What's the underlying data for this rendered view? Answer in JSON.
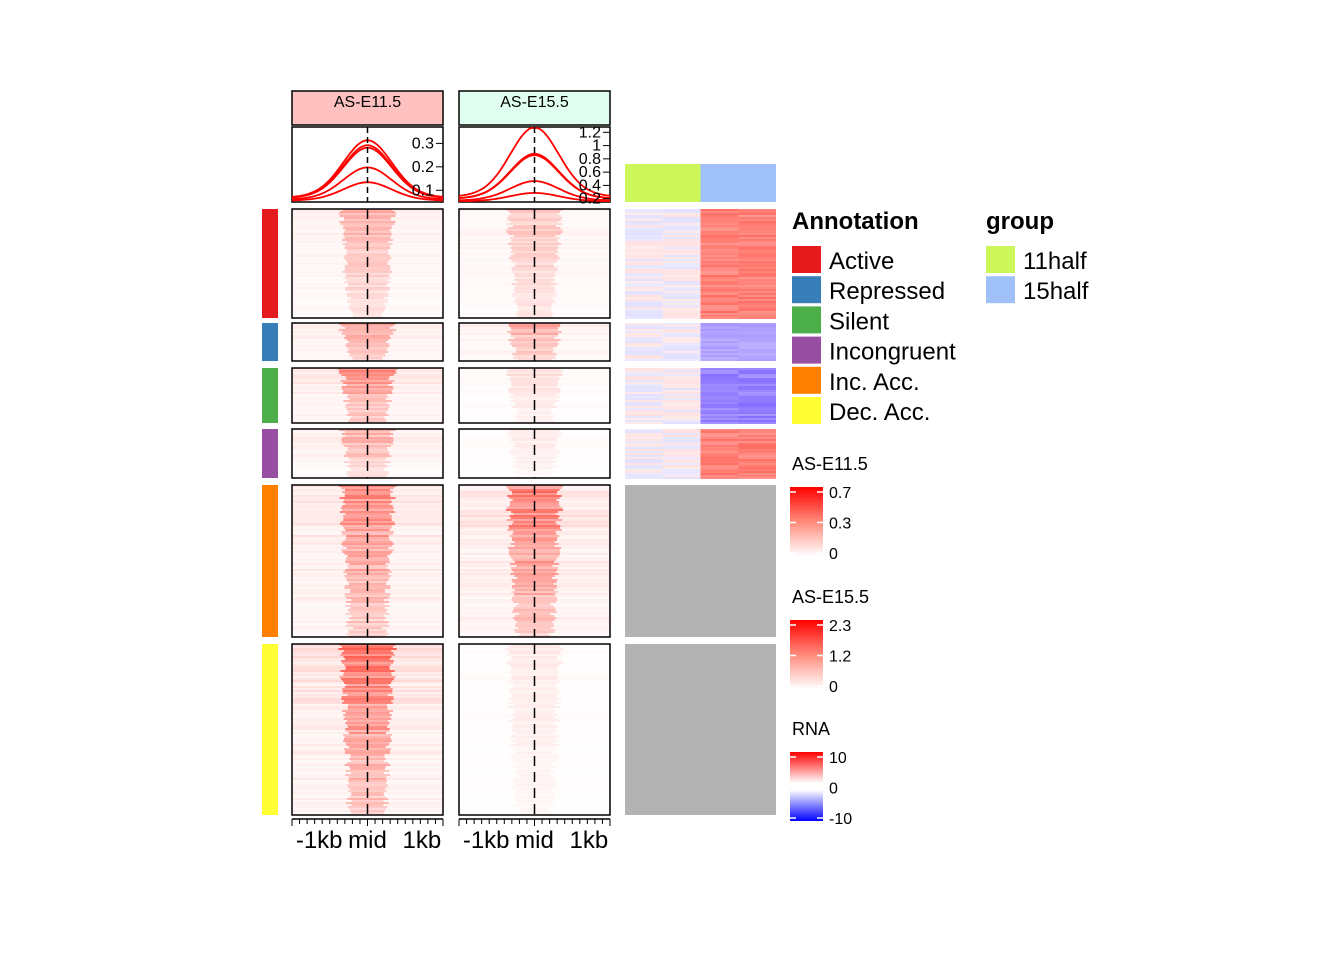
{
  "chart_data": {
    "type": "heatmap",
    "title": "",
    "panels": [
      {
        "name": "AS-E11.5",
        "header_color": "#FFC0C0",
        "profile_yticks": [
          0.1,
          0.2,
          0.3
        ],
        "profile_ylim": [
          0.05,
          0.37
        ],
        "profile_peaks": [
          0.3,
          0.28,
          0.27,
          0.19,
          0.13
        ],
        "cluster_intensity": [
          0.45,
          0.6,
          0.7,
          0.5,
          0.75,
          0.9
        ]
      },
      {
        "name": "AS-E15.5",
        "header_color": "#E0FFF0",
        "profile_yticks": [
          0.2,
          0.4,
          0.6,
          0.8,
          1,
          1.2
        ],
        "profile_ylim": [
          0.15,
          1.28
        ],
        "profile_peaks": [
          1.22,
          0.84,
          0.82,
          0.45,
          0.28
        ],
        "cluster_intensity": [
          0.35,
          0.55,
          0.2,
          0.12,
          0.85,
          0.12
        ]
      }
    ],
    "x_ticks": [
      "-1kb",
      "mid",
      "1kb"
    ],
    "clusters": [
      {
        "name": "Active",
        "color": "#E41A1C"
      },
      {
        "name": "Repressed",
        "color": "#377EB8"
      },
      {
        "name": "Silent",
        "color": "#4DAF4A"
      },
      {
        "name": "Incongruent",
        "color": "#984EA3"
      },
      {
        "name": "Inc. Acc.",
        "color": "#FF7F00"
      },
      {
        "name": "Dec. Acc.",
        "color": "#FFFF33"
      }
    ],
    "rna": {
      "groups": [
        "11half",
        "15half"
      ],
      "group_colors": [
        "#CCF65A",
        "#A0C0FA"
      ],
      "cluster_values": [
        [
          0,
          6
        ],
        [
          0,
          -4
        ],
        [
          0,
          -6
        ],
        [
          0,
          6
        ],
        null,
        null
      ],
      "na_color": "#B3B3B3"
    },
    "legends": {
      "annotation_title": "Annotation",
      "group_title": "group",
      "colorbars": [
        {
          "title": "AS-E11.5",
          "ticks": [
            "0.7",
            "0.3",
            "0"
          ],
          "type": "white-red"
        },
        {
          "title": "AS-E15.5",
          "ticks": [
            "2.3",
            "1.2",
            "0"
          ],
          "type": "white-red"
        },
        {
          "title": "RNA",
          "ticks": [
            "10",
            "0",
            "-10"
          ],
          "type": "blue-white-red"
        }
      ]
    }
  }
}
